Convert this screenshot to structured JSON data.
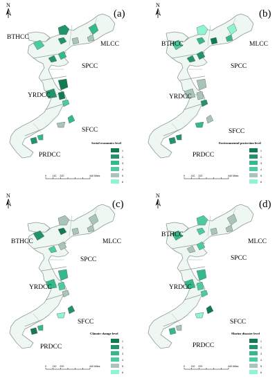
{
  "palette": [
    "#127a4f",
    "#22946a",
    "#35b98a",
    "#4bcb9f",
    "#aac4b8",
    "#8ef5d0"
  ],
  "legend_levels": [
    "1",
    "2",
    "3",
    "4",
    "5",
    "6"
  ],
  "scale_bar": {
    "ticks": [
      "0",
      "110",
      "220",
      "",
      "",
      "",
      "440 Miles"
    ]
  },
  "north_arrow": {
    "label": "N",
    "icon": "north-arrow-icon"
  },
  "panels": [
    {
      "letter": "(a)",
      "legend_title": "Social economics level",
      "labels": {
        "bthcc": "BTHCC",
        "mlcc": "MLCC",
        "spcc": "SPCC",
        "yrdcc": "YRDCC",
        "sfcc": "SFCC",
        "prdcc": "PRDCC"
      },
      "city_levels": [
        2,
        3,
        5,
        4,
        2,
        5,
        3,
        2,
        1,
        2,
        1,
        4,
        3,
        5,
        2,
        3
      ]
    },
    {
      "letter": "(b)",
      "legend_title": "Environmental protection level",
      "labels": {
        "bthcc": "BTHCC",
        "mlcc": "MLCC",
        "spcc": "SPCC",
        "yrdcc": "YRDCC",
        "sfcc": "SFCC",
        "prdcc": "PRDCC"
      },
      "city_levels": [
        6,
        6,
        3,
        4,
        3,
        1,
        2,
        2,
        5,
        5,
        5,
        2,
        5,
        3,
        2,
        2
      ]
    },
    {
      "letter": "(c)",
      "legend_title": "Climate change level",
      "labels": {
        "bthcc": "BTHCC",
        "mlcc": "MLCC",
        "spcc": "SPCC",
        "yrdcc": "YRDCC",
        "sfcc": "SFCC",
        "prdcc": "PRDCC"
      },
      "city_levels": [
        5,
        5,
        5,
        2,
        1,
        5,
        5,
        4,
        3,
        3,
        4,
        5,
        2,
        6,
        1,
        3
      ]
    },
    {
      "letter": "(d)",
      "legend_title": "Marine disaster level",
      "labels": {
        "bthcc": "BTHCC",
        "mlcc": "MLCC",
        "spcc": "SPCC",
        "yrdcc": "YRDCC",
        "sfcc": "SFCC",
        "prdcc": "PRDCC"
      },
      "city_levels": [
        4,
        5,
        5,
        3,
        4,
        5,
        4,
        5,
        3,
        3,
        4,
        4,
        1,
        6,
        3,
        5
      ]
    }
  ]
}
